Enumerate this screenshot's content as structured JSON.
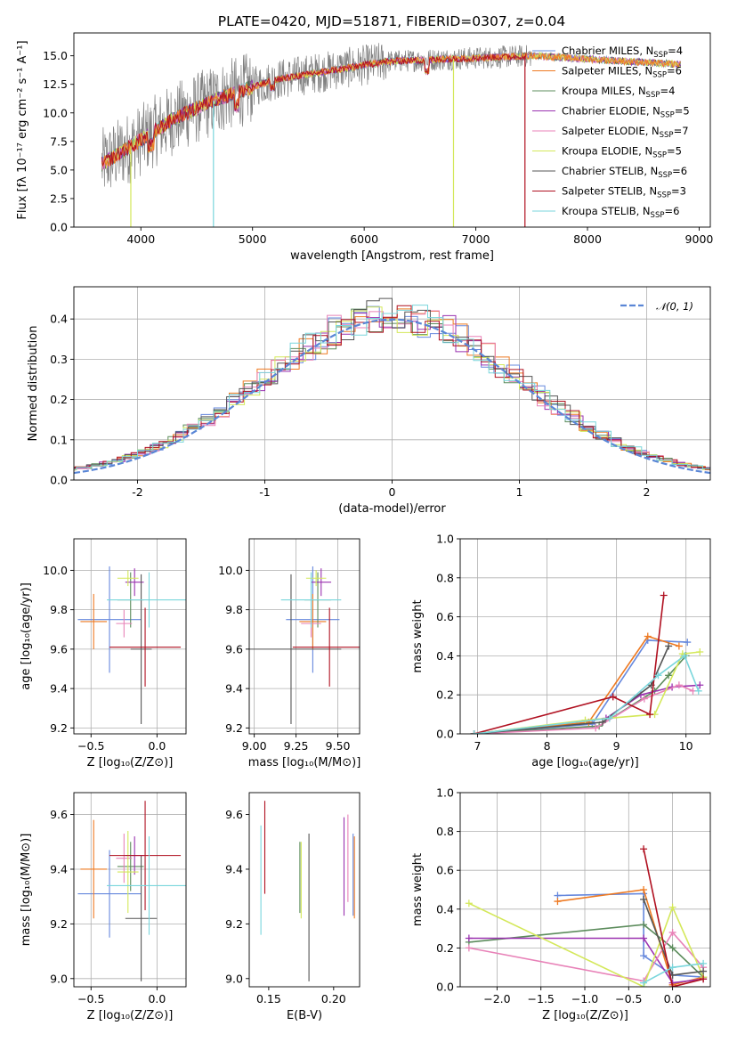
{
  "figure_title": "PLATE=0420, MJD=51871, FIBERID=0307, z=0.04",
  "colors": [
    "#6688dd",
    "#ee7a22",
    "#5c8c5c",
    "#9a32b0",
    "#e882b8",
    "#d4e85a",
    "#555555",
    "#b01020",
    "#7ad6dc"
  ],
  "chart_data": [
    {
      "id": "spectrum",
      "type": "line",
      "title": "PLATE=0420, MJD=51871, FIBERID=0307, z=0.04",
      "xlabel": "wavelength [Angstrom, rest frame]",
      "ylabel": "Flux [fλ 10⁻¹⁷ erg cm⁻² s⁻¹ A⁻¹]",
      "xlim": [
        3400,
        9100
      ],
      "ylim": [
        0,
        17
      ],
      "xticks": [
        4000,
        5000,
        6000,
        7000,
        8000,
        9000
      ],
      "yticks": [
        0.0,
        2.5,
        5.0,
        7.5,
        10.0,
        12.5,
        15.0
      ],
      "ytick_labels": [
        "0.0",
        "2.5",
        "5.0",
        "7.5",
        "10.0",
        "12.5",
        "15.0"
      ],
      "series": [
        {
          "name": "Chabrier MILES, N_SSP=4"
        },
        {
          "name": "Salpeter MILES, N_SSP=6"
        },
        {
          "name": "Kroupa MILES, N_SSP=4"
        },
        {
          "name": "Chabrier ELODIE, N_SSP=5"
        },
        {
          "name": "Salpeter ELODIE, N_SSP=7"
        },
        {
          "name": "Kroupa ELODIE, N_SSP=5"
        },
        {
          "name": "Chabrier STELIB, N_SSP=6"
        },
        {
          "name": "Salpeter STELIB, N_SSP=3"
        },
        {
          "name": "Kroupa STELIB, N_SSP=6"
        }
      ],
      "legend": "top-right",
      "grid": false
    },
    {
      "id": "residuals",
      "type": "line",
      "xlabel": "(data-model)/error",
      "ylabel": "Normed distribution",
      "xlim": [
        -2.5,
        2.5
      ],
      "ylim": [
        0,
        0.48
      ],
      "xticks": [
        -2,
        -1,
        0,
        1,
        2
      ],
      "yticks": [
        0.0,
        0.1,
        0.2,
        0.3,
        0.4
      ],
      "ytick_labels": [
        "0.0",
        "0.1",
        "0.2",
        "0.3",
        "0.4"
      ],
      "legend_label": "𝒩(0, 1)",
      "legend": "top-right",
      "grid": true
    },
    {
      "id": "age_vs_Z",
      "type": "scatter",
      "xlabel": "Z [log₁₀(Z/Z⊙)]",
      "ylabel": "age [log₁₀(age/yr)]",
      "xlim": [
        -0.63,
        0.22
      ],
      "ylim": [
        9.17,
        10.16
      ],
      "xticks": [
        -0.5,
        0.0
      ],
      "xtick_labels": [
        "−0.5",
        "0.0"
      ],
      "yticks": [
        9.2,
        9.4,
        9.6,
        9.8,
        10.0
      ],
      "ytick_labels": [
        "9.2",
        "9.4",
        "9.6",
        "9.8",
        "10.0"
      ],
      "points": [
        {
          "x": -0.36,
          "xerr": 0.24,
          "y": 9.75,
          "yerr": 0.27
        },
        {
          "x": -0.48,
          "xerr": 0.1,
          "y": 9.74,
          "yerr": 0.14
        },
        {
          "x": -0.2,
          "xerr": 0.1,
          "y": 9.85,
          "yerr": 0.14
        },
        {
          "x": -0.17,
          "xerr": 0.07,
          "y": 9.94,
          "yerr": 0.07
        },
        {
          "x": -0.25,
          "xerr": 0.06,
          "y": 9.73,
          "yerr": 0.07
        },
        {
          "x": -0.22,
          "xerr": 0.08,
          "y": 9.96,
          "yerr": 0.04
        },
        {
          "x": -0.12,
          "xerr": 0.08,
          "y": 9.6,
          "yerr": 0.38
        },
        {
          "x": -0.09,
          "xerr": 0.27,
          "y": 9.61,
          "yerr": 0.2
        },
        {
          "x": -0.06,
          "xerr": 0.32,
          "y": 9.85,
          "yerr": 0.14
        }
      ],
      "grid": true
    },
    {
      "id": "age_vs_mass",
      "type": "scatter",
      "xlabel": "mass [log₁₀(M/M⊙)]",
      "xlim": [
        8.97,
        9.63
      ],
      "ylim": [
        9.17,
        10.16
      ],
      "xticks": [
        9.0,
        9.25,
        9.5
      ],
      "xtick_labels": [
        "9.00",
        "9.25",
        "9.50"
      ],
      "yticks": [
        9.2,
        9.4,
        9.6,
        9.8,
        10.0
      ],
      "ytick_labels": [
        "9.2",
        "9.4",
        "9.6",
        "9.8",
        "10.0"
      ],
      "points": [
        {
          "x": 9.35,
          "xerr": 0.16,
          "y": 9.75,
          "yerr": 0.27
        },
        {
          "x": 9.35,
          "xerr": 0.08,
          "y": 9.74,
          "yerr": 0.14
        },
        {
          "x": 9.38,
          "xerr": 0.08,
          "y": 9.85,
          "yerr": 0.14
        },
        {
          "x": 9.4,
          "xerr": 0.06,
          "y": 9.94,
          "yerr": 0.07
        },
        {
          "x": 9.34,
          "xerr": 0.06,
          "y": 9.73,
          "yerr": 0.07
        },
        {
          "x": 9.37,
          "xerr": 0.06,
          "y": 9.96,
          "yerr": 0.04
        },
        {
          "x": 9.22,
          "xerr": 0.3,
          "y": 9.6,
          "yerr": 0.38
        },
        {
          "x": 9.45,
          "xerr": 0.22,
          "y": 9.61,
          "yerr": 0.2
        },
        {
          "x": 9.34,
          "xerr": 0.18,
          "y": 9.85,
          "yerr": 0.14
        }
      ],
      "grid": true
    },
    {
      "id": "weight_vs_age",
      "type": "line",
      "xlabel": "age [log₁₀(age/yr)]",
      "ylabel": "mass weight",
      "xlim": [
        6.75,
        10.35
      ],
      "ylim": [
        0,
        1
      ],
      "xticks": [
        7,
        8,
        9,
        10
      ],
      "yticks": [
        0.0,
        0.2,
        0.4,
        0.6,
        0.8,
        1.0
      ],
      "ytick_labels": [
        "0.0",
        "0.2",
        "0.4",
        "0.6",
        "0.8",
        "1.0"
      ],
      "series": [
        {
          "x": [
            6.95,
            8.65,
            9.45,
            10.02
          ],
          "y": [
            0.0,
            0.05,
            0.48,
            0.47
          ]
        },
        {
          "x": [
            6.95,
            8.6,
            9.45,
            9.9
          ],
          "y": [
            0.0,
            0.06,
            0.5,
            0.45
          ]
        },
        {
          "x": [
            6.95,
            8.75,
            9.55,
            9.75,
            10.0
          ],
          "y": [
            0.0,
            0.04,
            0.22,
            0.3,
            0.4
          ]
        },
        {
          "x": [
            6.95,
            8.85,
            9.35,
            9.8,
            10.2
          ],
          "y": [
            0.0,
            0.08,
            0.2,
            0.24,
            0.25
          ]
        },
        {
          "x": [
            6.95,
            8.7,
            9.4,
            9.9,
            10.1
          ],
          "y": [
            0.0,
            0.03,
            0.18,
            0.25,
            0.22
          ]
        },
        {
          "x": [
            6.95,
            8.55,
            9.55,
            9.95,
            10.2
          ],
          "y": [
            0.0,
            0.07,
            0.1,
            0.41,
            0.42
          ]
        },
        {
          "x": [
            6.95,
            8.8,
            9.5,
            9.75
          ],
          "y": [
            0.0,
            0.06,
            0.25,
            0.45
          ]
        },
        {
          "x": [
            6.95,
            8.95,
            9.48,
            9.68
          ],
          "y": [
            0.0,
            0.19,
            0.1,
            0.71
          ]
        },
        {
          "x": [
            6.95,
            8.9,
            9.6,
            9.98,
            10.18
          ],
          "y": [
            0.0,
            0.08,
            0.3,
            0.4,
            0.22
          ]
        }
      ],
      "grid": true
    },
    {
      "id": "mass_vs_Z",
      "type": "scatter",
      "xlabel": "Z [log₁₀(Z/Z⊙)]",
      "ylabel": "mass [log₁₀(M/M⊙)]",
      "xlim": [
        -0.63,
        0.22
      ],
      "ylim": [
        8.97,
        9.68
      ],
      "xticks": [
        -0.5,
        0.0
      ],
      "xtick_labels": [
        "−0.5",
        "0.0"
      ],
      "yticks": [
        9.0,
        9.2,
        9.4,
        9.6
      ],
      "ytick_labels": [
        "9.0",
        "9.2",
        "9.4",
        "9.6"
      ],
      "points": [
        {
          "x": -0.36,
          "xerr": 0.24,
          "y": 9.31,
          "yerr": 0.16
        },
        {
          "x": -0.48,
          "xerr": 0.1,
          "y": 9.4,
          "yerr": 0.18
        },
        {
          "x": -0.2,
          "xerr": 0.1,
          "y": 9.41,
          "yerr": 0.09
        },
        {
          "x": -0.17,
          "xerr": 0.07,
          "y": 9.45,
          "yerr": 0.07
        },
        {
          "x": -0.25,
          "xerr": 0.06,
          "y": 9.44,
          "yerr": 0.09
        },
        {
          "x": -0.22,
          "xerr": 0.08,
          "y": 9.39,
          "yerr": 0.15
        },
        {
          "x": -0.12,
          "xerr": 0.12,
          "y": 9.22,
          "yerr": 0.23
        },
        {
          "x": -0.09,
          "xerr": 0.27,
          "y": 9.45,
          "yerr": 0.2
        },
        {
          "x": -0.06,
          "xerr": 0.32,
          "y": 9.34,
          "yerr": 0.18
        }
      ],
      "grid": true
    },
    {
      "id": "mass_vs_ebv",
      "type": "scatter",
      "xlabel": "E(B-V)",
      "xlim": [
        0.135,
        0.22
      ],
      "ylim": [
        8.97,
        9.68
      ],
      "xticks": [
        0.15,
        0.2
      ],
      "xtick_labels": [
        "0.15",
        "0.20"
      ],
      "yticks": [
        9.0,
        9.2,
        9.4,
        9.6
      ],
      "ytick_labels": [
        "9.0",
        "9.2",
        "9.4",
        "9.6"
      ],
      "points": [
        {
          "x": 0.215,
          "y": 9.38,
          "yerr": 0.15
        },
        {
          "x": 0.216,
          "y": 9.37,
          "yerr": 0.15
        },
        {
          "x": 0.174,
          "y": 9.37,
          "yerr": 0.13
        },
        {
          "x": 0.208,
          "y": 9.41,
          "yerr": 0.18
        },
        {
          "x": 0.211,
          "y": 9.44,
          "yerr": 0.16
        },
        {
          "x": 0.175,
          "y": 9.36,
          "yerr": 0.14
        },
        {
          "x": 0.181,
          "y": 9.26,
          "yerr": 0.27
        },
        {
          "x": 0.147,
          "y": 9.48,
          "yerr": 0.17
        },
        {
          "x": 0.144,
          "y": 9.36,
          "yerr": 0.2
        }
      ],
      "grid": false
    },
    {
      "id": "weight_vs_Z",
      "type": "line",
      "xlabel": "Z [log₁₀(Z/Z⊙)]",
      "ylabel": "mass weight",
      "xlim": [
        -2.42,
        0.43
      ],
      "ylim": [
        0,
        1
      ],
      "xticks": [
        -2.0,
        -1.5,
        -1.0,
        -0.5,
        0.0
      ],
      "xtick_labels": [
        "−2.0",
        "−1.5",
        "−1.0",
        "−0.5",
        "0.0"
      ],
      "yticks": [
        0.0,
        0.2,
        0.4,
        0.6,
        0.8,
        1.0
      ],
      "ytick_labels": [
        "0.0",
        "0.2",
        "0.4",
        "0.6",
        "0.8",
        "1.0"
      ],
      "series": [
        {
          "x": [
            -1.31,
            -0.33,
            -0.33,
            0.0,
            0.35
          ],
          "y": [
            0.47,
            0.48,
            0.16,
            0.06,
            0.05
          ]
        },
        {
          "x": [
            -1.31,
            -0.33,
            0.0,
            0.35
          ],
          "y": [
            0.44,
            0.5,
            0.01,
            0.05
          ]
        },
        {
          "x": [
            -2.32,
            -0.33,
            0.0,
            0.35
          ],
          "y": [
            0.23,
            0.32,
            0.2,
            0.05
          ]
        },
        {
          "x": [
            -2.32,
            -0.33,
            0.0,
            0.35
          ],
          "y": [
            0.25,
            0.25,
            0.02,
            0.04
          ]
        },
        {
          "x": [
            -2.32,
            -0.33,
            0.0,
            0.35
          ],
          "y": [
            0.2,
            0.03,
            0.28,
            0.1
          ]
        },
        {
          "x": [
            -2.32,
            -0.33,
            0.0,
            0.35
          ],
          "y": [
            0.43,
            0.0,
            0.41,
            0.05
          ]
        },
        {
          "x": [
            -0.33,
            0.0,
            0.35
          ],
          "y": [
            0.45,
            0.06,
            0.08
          ]
        },
        {
          "x": [
            -0.33,
            0.0,
            0.35
          ],
          "y": [
            0.71,
            0.0,
            0.04
          ]
        },
        {
          "x": [
            -0.33,
            0.0,
            0.35
          ],
          "y": [
            0.02,
            0.1,
            0.12
          ]
        }
      ],
      "grid": true
    }
  ]
}
